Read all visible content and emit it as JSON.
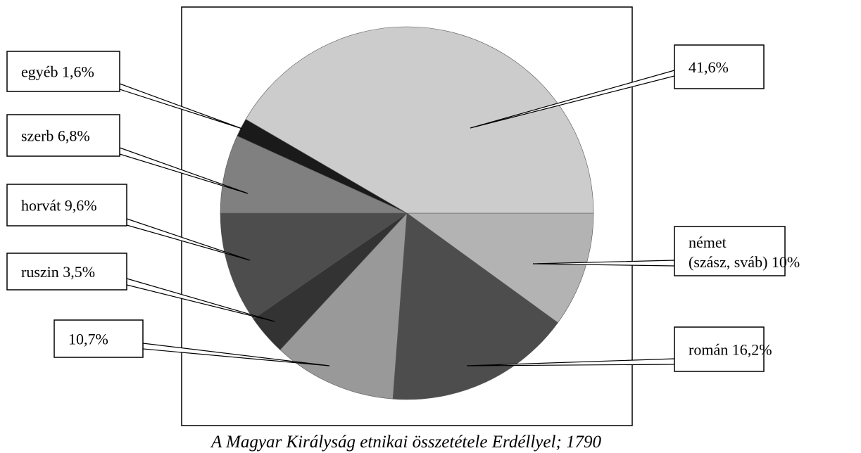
{
  "chart_data": {
    "type": "pie",
    "title": "A Magyar Királyság etnikai összetétele Erdéllyel; 1790",
    "values": [
      10,
      16.2,
      10.7,
      3.5,
      9.6,
      6.8,
      1.6,
      41.6
    ],
    "value_labels": [
      "német\n(szász, sváb) 10%",
      "román 16,2%",
      "10,7%",
      "ruszin 3,5%",
      "horvát 9,6%",
      "szerb 6,8%",
      "egyéb 1,6%",
      "41,6%"
    ],
    "colors": [
      "#b3b3b3",
      "#4d4d4d",
      "#999999",
      "#333333",
      "#4d4d4d",
      "#808080",
      "#1a1a1a",
      "#cccccc"
    ]
  }
}
